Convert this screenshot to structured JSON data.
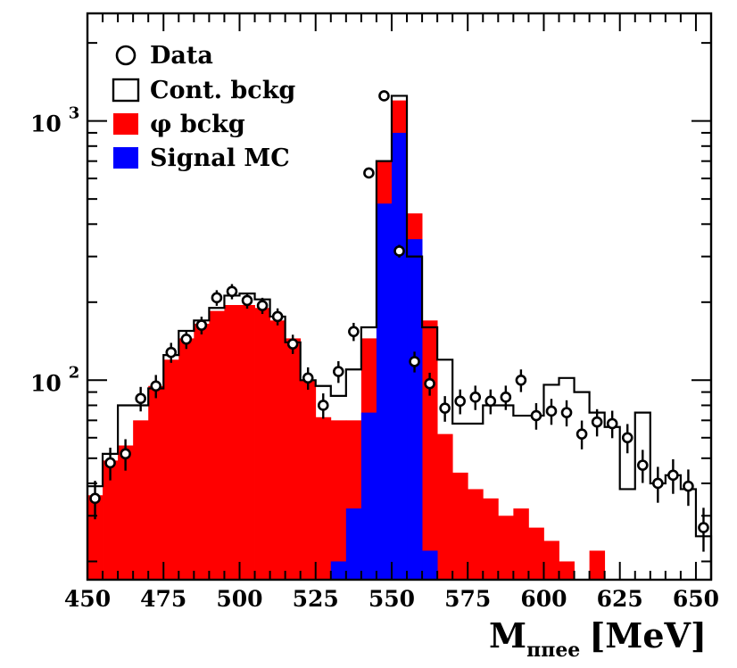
{
  "chart_data": {
    "type": "bar",
    "xlabel_main": "M",
    "xlabel_sub": "ππee",
    "xlabel_unit": "[MeV]",
    "ylabel": "",
    "x_range": [
      450,
      655
    ],
    "y_range": [
      17,
      2600
    ],
    "y_scale": "log",
    "x_ticks": [
      450,
      475,
      500,
      525,
      550,
      575,
      600,
      625,
      650
    ],
    "y_ticks": [
      {
        "value": 100,
        "base": "10",
        "exp": "2"
      },
      {
        "value": 1000,
        "base": "10",
        "exp": "3"
      }
    ],
    "bin_edges": [
      450,
      455,
      460,
      465,
      470,
      475,
      480,
      485,
      490,
      495,
      500,
      505,
      510,
      515,
      520,
      525,
      530,
      535,
      540,
      545,
      550,
      555,
      560,
      565,
      570,
      575,
      580,
      585,
      590,
      595,
      600,
      605,
      610,
      615,
      620,
      625,
      630,
      635,
      640,
      645,
      650,
      655
    ],
    "legend": [
      {
        "label": "Data",
        "kind": "marker"
      },
      {
        "label": "Cont. bckg",
        "kind": "outline"
      },
      {
        "label": "φ bckg",
        "kind": "fill",
        "color": "#ff0000"
      },
      {
        "label": "Signal MC",
        "kind": "fill",
        "color": "#0000ff"
      }
    ],
    "series": [
      {
        "name": "Signal MC",
        "color": "#0000ff",
        "values": [
          0,
          0,
          0,
          0,
          0,
          0,
          0,
          0,
          0,
          0,
          0,
          0,
          0,
          0,
          0,
          0,
          20,
          32,
          75,
          480,
          900,
          350,
          22,
          0,
          0,
          0,
          0,
          0,
          0,
          0,
          0,
          0,
          0,
          0,
          0,
          0,
          0,
          0,
          0,
          0,
          0
        ]
      },
      {
        "name": "φ bckg",
        "color": "#ff0000",
        "values": [
          36,
          49,
          56,
          70,
          95,
          120,
          145,
          165,
          185,
          195,
          195,
          190,
          170,
          145,
          100,
          72,
          70,
          70,
          145,
          700,
          1200,
          440,
          170,
          62,
          44,
          38,
          35,
          30,
          32,
          27,
          24,
          20,
          17,
          22,
          17,
          0,
          0,
          0,
          0,
          0,
          0
        ]
      },
      {
        "name": "Cont. bckg",
        "values": [
          39,
          52,
          80,
          80,
          93,
          125,
          155,
          170,
          190,
          212,
          216,
          205,
          176,
          140,
          100,
          95,
          87,
          110,
          160,
          700,
          1250,
          300,
          160,
          120,
          68,
          68,
          80,
          80,
          73,
          73,
          96,
          102,
          90,
          75,
          66,
          38,
          75,
          40,
          43,
          38,
          25
        ]
      },
      {
        "name": "Data",
        "x": [
          452.5,
          457.5,
          462.5,
          467.5,
          472.5,
          477.5,
          482.5,
          487.5,
          492.5,
          497.5,
          502.5,
          507.5,
          512.5,
          517.5,
          522.5,
          527.5,
          532.5,
          537.5,
          542.5,
          547.5,
          552.5,
          557.5,
          562.5,
          567.5,
          572.5,
          577.5,
          582.5,
          587.5,
          592.5,
          597.5,
          602.5,
          607.5,
          612.5,
          617.5,
          622.5,
          627.5,
          632.5,
          637.5,
          642.5,
          647.5,
          652.5
        ],
        "values": [
          35,
          48,
          52,
          85,
          95,
          128,
          144,
          163,
          208,
          220,
          203,
          194,
          176,
          138,
          102,
          80,
          108,
          154,
          630,
          1250,
          315,
          118,
          97,
          78,
          83,
          86,
          83,
          86,
          100,
          73,
          76,
          75,
          62,
          69,
          68,
          60,
          47,
          40,
          43,
          39,
          27
        ]
      }
    ]
  }
}
